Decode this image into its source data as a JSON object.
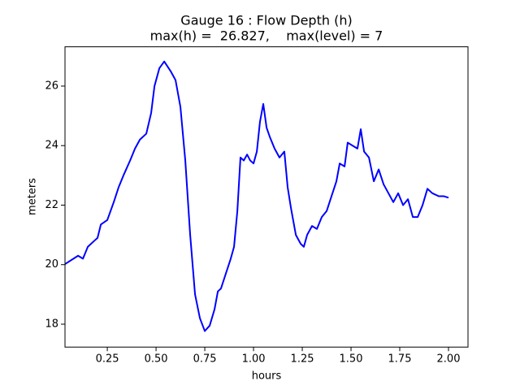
{
  "chart_data": {
    "type": "line",
    "title": "Gauge 16 : Flow Depth (h)",
    "subtitle": "max(h) =  26.827,    max(level) = 7",
    "x_label": "hours",
    "y_label": "meters",
    "x": [
      0.033,
      0.1,
      0.125,
      0.15,
      0.183,
      0.2,
      0.217,
      0.25,
      0.283,
      0.308,
      0.333,
      0.367,
      0.392,
      0.417,
      0.45,
      0.475,
      0.492,
      0.517,
      0.542,
      0.575,
      0.6,
      0.625,
      0.65,
      0.675,
      0.7,
      0.725,
      0.75,
      0.775,
      0.8,
      0.817,
      0.833,
      0.858,
      0.883,
      0.9,
      0.917,
      0.933,
      0.95,
      0.967,
      0.983,
      1.0,
      1.017,
      1.033,
      1.05,
      1.067,
      1.083,
      1.108,
      1.133,
      1.158,
      1.175,
      1.192,
      1.217,
      1.242,
      1.258,
      1.275,
      1.3,
      1.325,
      1.35,
      1.375,
      1.4,
      1.425,
      1.442,
      1.467,
      1.483,
      1.508,
      1.533,
      1.55,
      1.567,
      1.592,
      1.617,
      1.642,
      1.667,
      1.692,
      1.717,
      1.742,
      1.767,
      1.792,
      1.817,
      1.842,
      1.867,
      1.892,
      1.917,
      1.95,
      1.975,
      2.0
    ],
    "series": [
      {
        "color": "#0000ff",
        "values": [
          20.02,
          20.3,
          20.2,
          20.6,
          20.8,
          20.9,
          21.35,
          21.5,
          22.1,
          22.6,
          23.0,
          23.5,
          23.9,
          24.2,
          24.4,
          25.1,
          26.0,
          26.6,
          26.827,
          26.5,
          26.2,
          25.3,
          23.5,
          21.0,
          19.0,
          18.2,
          17.77,
          17.95,
          18.5,
          19.1,
          19.2,
          19.7,
          20.2,
          20.6,
          21.8,
          23.6,
          23.5,
          23.7,
          23.5,
          23.4,
          23.8,
          24.8,
          25.4,
          24.6,
          24.3,
          23.9,
          23.6,
          23.8,
          22.6,
          21.9,
          21.0,
          20.7,
          20.6,
          21.0,
          21.3,
          21.2,
          21.6,
          21.8,
          22.3,
          22.8,
          23.4,
          23.3,
          24.1,
          24.0,
          23.9,
          24.55,
          23.8,
          23.6,
          22.8,
          23.2,
          22.7,
          22.4,
          22.1,
          22.4,
          22.0,
          22.2,
          21.6,
          21.6,
          22.0,
          22.55,
          22.4,
          22.3,
          22.3,
          22.25
        ]
      }
    ],
    "xlim": [
      0.033,
      2.1
    ],
    "ylim": [
      17.23,
      27.32
    ],
    "xticks": [
      0.25,
      {
        "value": 0.5,
        "label": "0.50"
      },
      0.75,
      {
        "value": 1,
        "label": "1.00"
      },
      1.25,
      {
        "value": 1.5,
        "label": "1.50"
      },
      1.75,
      {
        "value": 2,
        "label": "2.00"
      }
    ],
    "yticks": [
      18,
      20,
      22,
      24,
      26
    ],
    "grid": false
  }
}
